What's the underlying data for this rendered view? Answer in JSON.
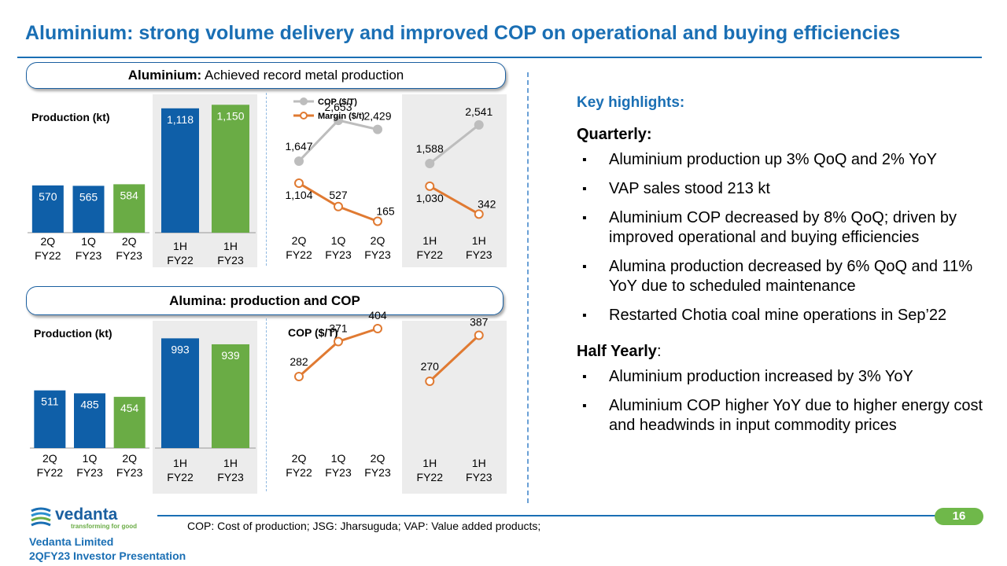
{
  "title": "Aluminium: strong volume delivery and improved COP on operational and buying efficiencies",
  "aluminium_header": {
    "bold": "Aluminium:",
    "rest": " Achieved record metal production"
  },
  "alumina_header": {
    "bold": "Alumina: production and COP"
  },
  "key_highlights": {
    "title": "Key highlights:",
    "quarterly_title": "Quarterly:",
    "quarterly": [
      "Aluminium production up 3% QoQ and 2% YoY",
      "VAP sales stood 213 kt",
      "Aluminium COP decreased by 8% QoQ; driven by improved operational and buying efficiencies",
      "Alumina production decreased  by 6% QoQ and 11% YoY due to scheduled maintenance",
      "Restarted Chotia coal mine operations in Sep’22"
    ],
    "half_title": "Half Yearly",
    "half_colon": ":",
    "half": [
      "Aluminium production increased by 3% YoY",
      "Aluminium COP higher YoY due to higher energy cost and headwinds in input commodity prices"
    ]
  },
  "footnote": "COP: Cost of production; JSG: Jharsuguda; VAP: Value added products;",
  "page_number": "16",
  "company": {
    "line1": "Vedanta Limited",
    "line2": "2QFY23 Investor Presentation"
  },
  "logo": {
    "name": "vedanta",
    "tagline": "transforming for good"
  },
  "colors": {
    "blue": "#1a6fb4",
    "bar_blue": "#0f5fa8",
    "bar_green": "#6aac45",
    "cop_grey": "#bdbdbd",
    "margin_orange": "#e07a32"
  },
  "chart_data": [
    {
      "id": "al_prod_q",
      "type": "bar",
      "ylabel": "Production (kt)",
      "categories": [
        "2Q FY22",
        "1Q FY23",
        "2Q FY23"
      ],
      "values": [
        570,
        565,
        584
      ],
      "bar_colors": [
        "blue",
        "blue",
        "green"
      ]
    },
    {
      "id": "al_prod_h",
      "type": "bar",
      "categories": [
        "1H FY22",
        "1H FY23"
      ],
      "values": [
        1118,
        1150
      ],
      "labels": [
        "1,118",
        "1,150"
      ],
      "bar_colors": [
        "blue",
        "green"
      ]
    },
    {
      "id": "al_cop_q",
      "type": "line",
      "categories": [
        "2Q FY22",
        "1Q FY23",
        "2Q FY23"
      ],
      "series": [
        {
          "name": "COP ($/T)",
          "values": [
            1647,
            2653,
            2429
          ],
          "labels": [
            "1,647",
            "2,653",
            "2,429"
          ]
        },
        {
          "name": "Margin ($/t)",
          "values": [
            1104,
            527,
            165
          ],
          "labels": [
            "1,104",
            "527",
            "165"
          ]
        }
      ],
      "legend": "top-left"
    },
    {
      "id": "al_cop_h",
      "type": "line",
      "categories": [
        "1H FY22",
        "1H FY23"
      ],
      "series": [
        {
          "name": "COP ($/T)",
          "values": [
            1588,
            2541
          ],
          "labels": [
            "1,588",
            "2,541"
          ]
        },
        {
          "name": "Margin ($/t)",
          "values": [
            1030,
            342
          ],
          "labels": [
            "1,030",
            "342"
          ]
        }
      ]
    },
    {
      "id": "alumina_prod_q",
      "type": "bar",
      "ylabel": "Production (kt)",
      "categories": [
        "2Q FY22",
        "1Q FY23",
        "2Q FY23"
      ],
      "values": [
        511,
        485,
        454
      ],
      "bar_colors": [
        "blue",
        "blue",
        "green"
      ]
    },
    {
      "id": "alumina_prod_h",
      "type": "bar",
      "categories": [
        "1H FY22",
        "1H FY23"
      ],
      "values": [
        993,
        939
      ],
      "bar_colors": [
        "blue",
        "green"
      ]
    },
    {
      "id": "alumina_cop_q",
      "type": "line",
      "ylabel": "COP ($/T)",
      "categories": [
        "2Q FY22",
        "1Q FY23",
        "2Q FY23"
      ],
      "series": [
        {
          "values": [
            282,
            371,
            404
          ]
        }
      ]
    },
    {
      "id": "alumina_cop_h",
      "type": "line",
      "categories": [
        "1H FY22",
        "1H FY23"
      ],
      "series": [
        {
          "values": [
            270,
            387
          ]
        }
      ]
    }
  ]
}
